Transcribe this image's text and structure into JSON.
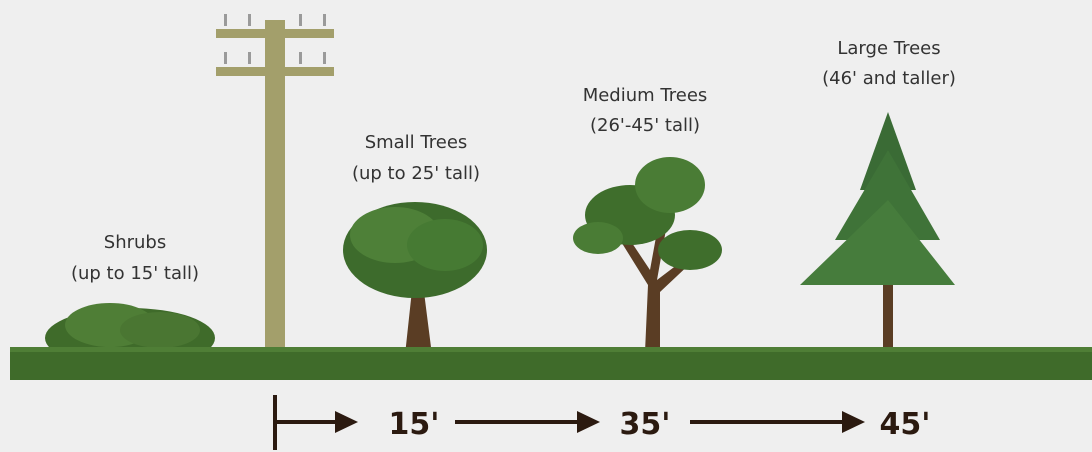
{
  "plants": [
    {
      "name": "Shrubs",
      "height": "(up to 15' tall)"
    },
    {
      "name": "Small Trees",
      "height": "(up to 25' tall)"
    },
    {
      "name": "Medium Trees",
      "height": "(26'-45' tall)"
    },
    {
      "name": "Large Trees",
      "height": "(46' and taller)"
    }
  ],
  "distances": [
    "15'",
    "35'",
    "45'"
  ]
}
